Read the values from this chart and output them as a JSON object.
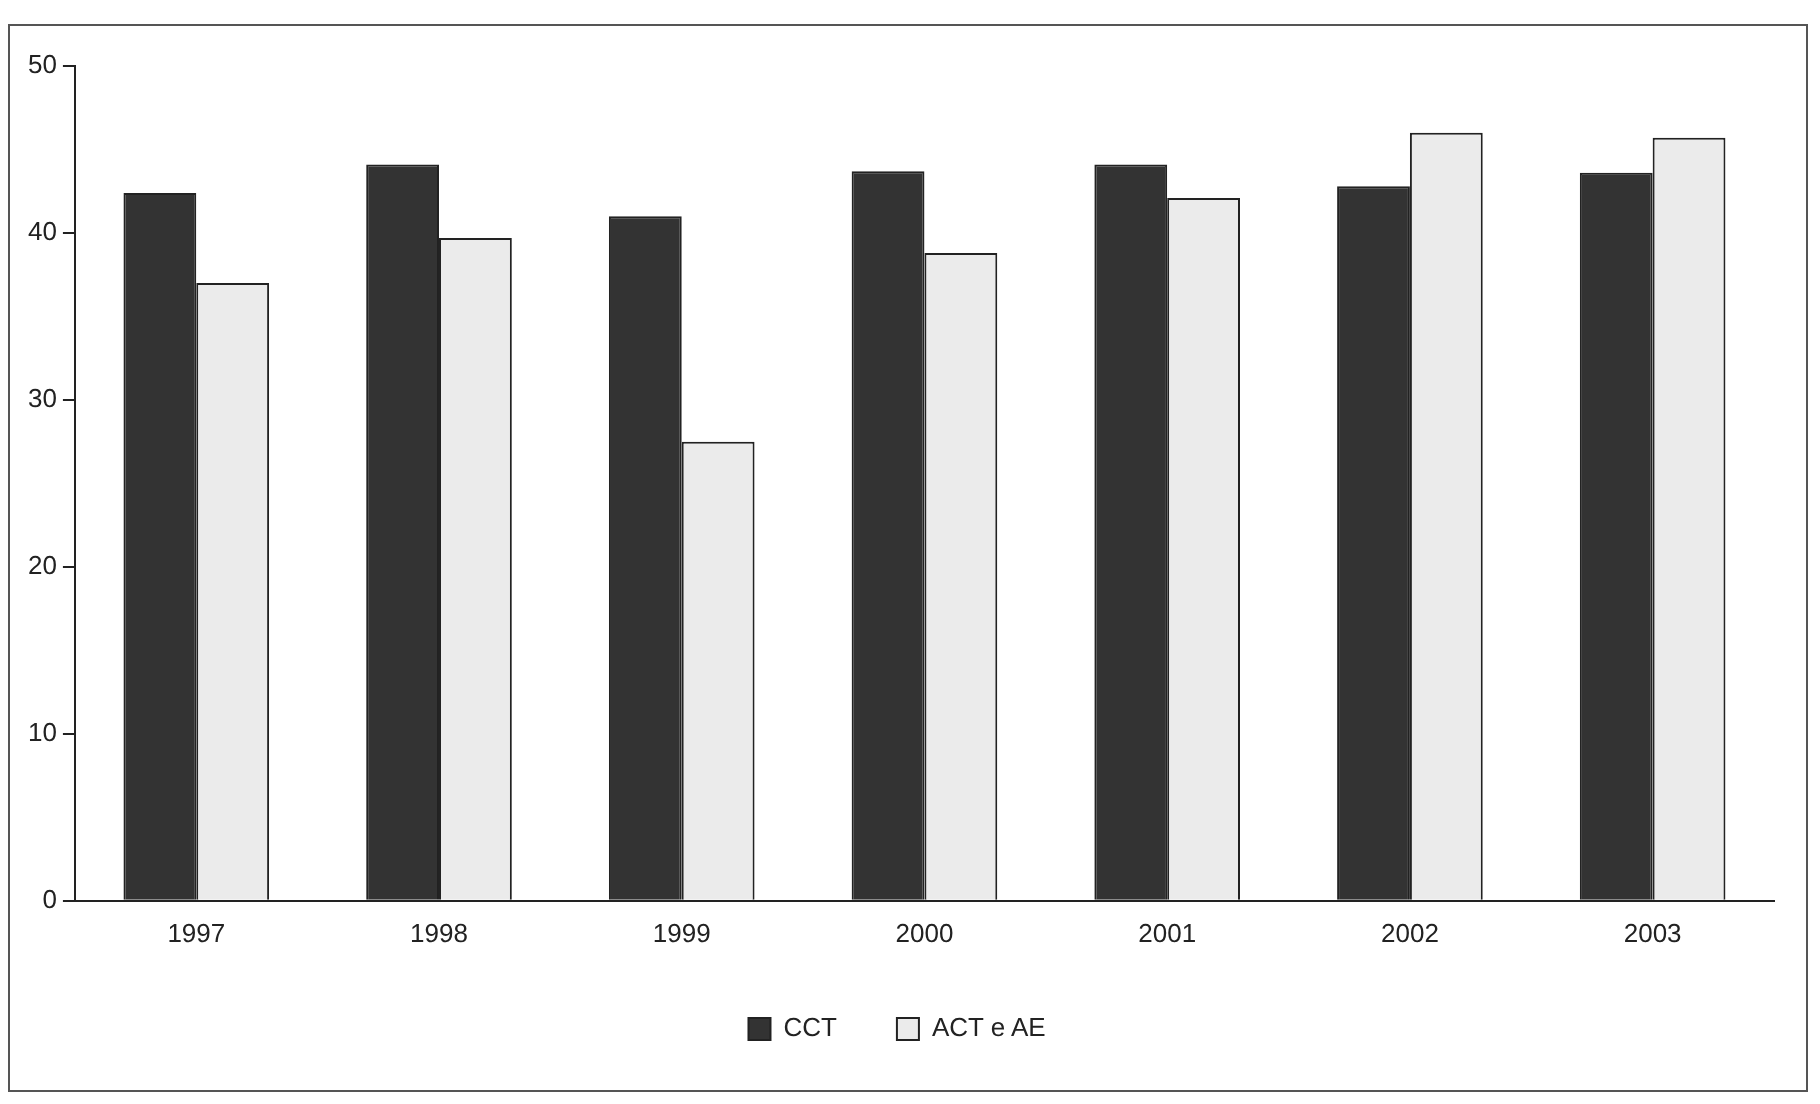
{
  "chart_data": {
    "type": "bar",
    "categories": [
      "1997",
      "1998",
      "1999",
      "2000",
      "2001",
      "2002",
      "2003"
    ],
    "series": [
      {
        "name": "CCT",
        "color": "#333333",
        "values": [
          42.4,
          44.1,
          41.0,
          43.7,
          44.1,
          42.8,
          43.6
        ]
      },
      {
        "name": "ACT e AE",
        "color": "#ebebeb",
        "values": [
          37.0,
          39.7,
          27.5,
          38.8,
          42.1,
          46.0,
          45.7
        ]
      }
    ],
    "ylim": [
      0,
      50
    ],
    "yticks": [
      0,
      10,
      20,
      30,
      40,
      50
    ],
    "grid": false,
    "legend": "bottom"
  }
}
